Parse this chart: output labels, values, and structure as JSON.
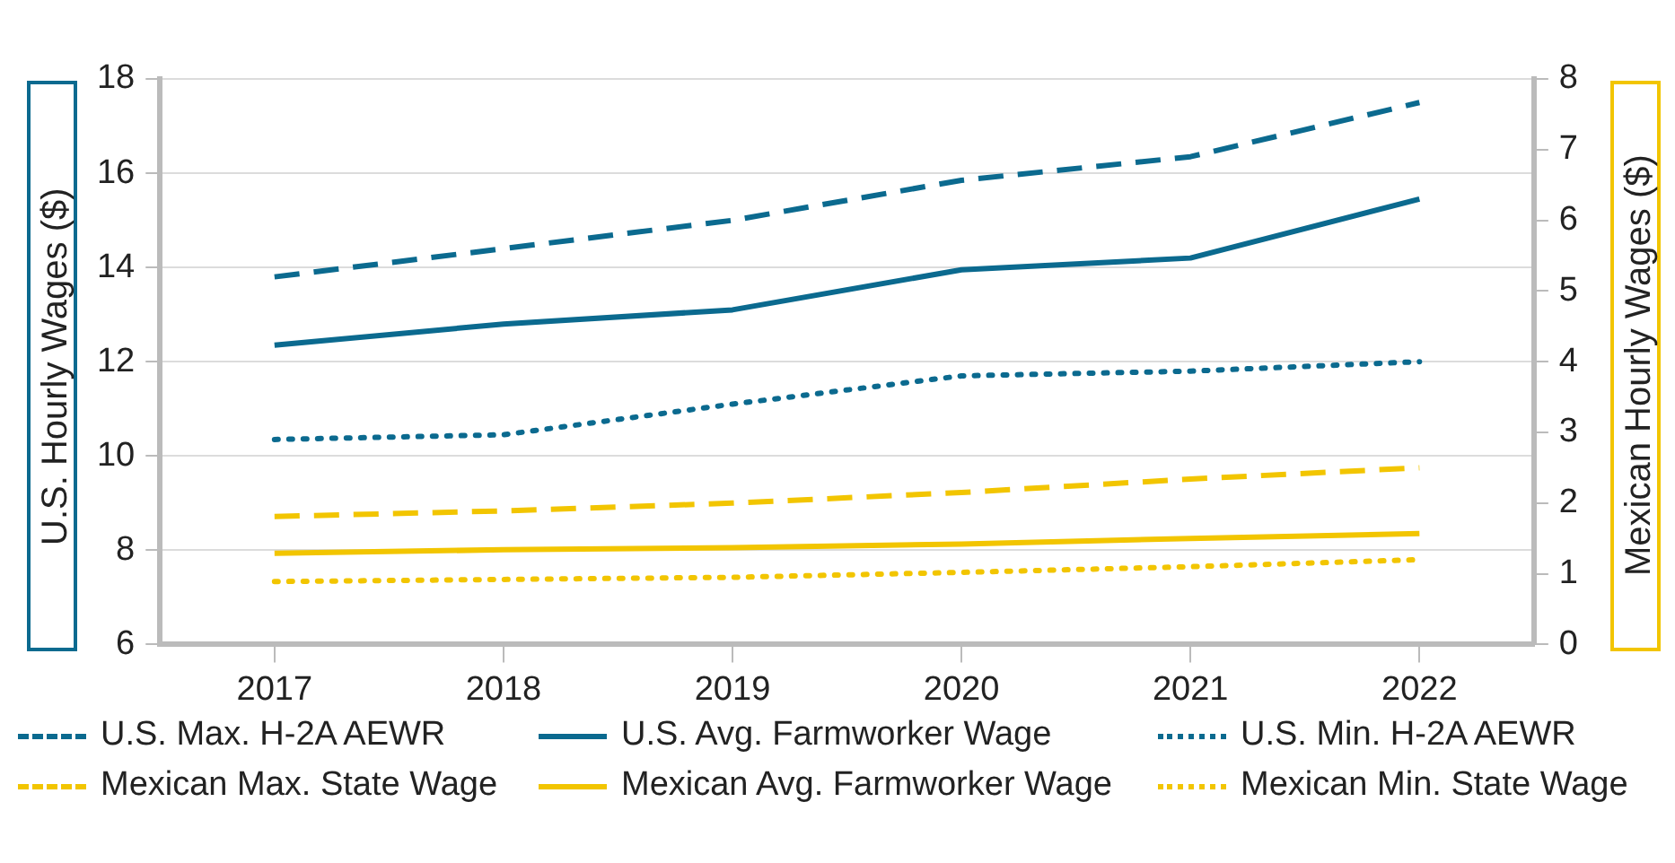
{
  "chart_data": {
    "type": "line",
    "categories": [
      "2017",
      "2018",
      "2019",
      "2020",
      "2021",
      "2022"
    ],
    "ylabel": "U.S. Hourly Wages ($)",
    "y2label": "Mexican Hourly Wages ($)",
    "ylim": [
      6,
      18
    ],
    "yticks": [
      6,
      8,
      10,
      12,
      14,
      16,
      18
    ],
    "y2lim": [
      0,
      8
    ],
    "y2ticks": [
      0,
      1,
      2,
      3,
      4,
      5,
      6,
      7,
      8
    ],
    "grid": "y",
    "legend": "bottom",
    "marker": "none",
    "series": [
      {
        "name": "U.S. Max. H-2A AEWR",
        "color": "#0b6a8f",
        "line_style": "dashed",
        "values": [
          13.8,
          14.4,
          15.0,
          15.85,
          16.35,
          17.5
        ]
      },
      {
        "name": "U.S. Avg. Farmworker Wage",
        "color": "#0b6a8f",
        "line_style": "solid",
        "values": [
          12.35,
          12.8,
          13.1,
          13.95,
          14.2,
          15.45
        ]
      },
      {
        "name": "U.S. Min. H-2A AEWR",
        "color": "#0b6a8f",
        "line_style": "dotted",
        "values": [
          10.35,
          10.45,
          11.1,
          11.7,
          11.8,
          12.0
        ]
      },
      {
        "name": "Mexican Max. State Wage",
        "color": "#f2c500",
        "line_style": "dashed",
        "axis": "y2",
        "values": [
          1.81,
          1.89,
          2.0,
          2.15,
          2.34,
          2.5
        ]
      },
      {
        "name": "Mexican Avg. Farmworker Wage",
        "color": "#f2c500",
        "line_style": "solid",
        "axis": "y2",
        "values": [
          1.29,
          1.34,
          1.37,
          1.42,
          1.5,
          1.57
        ]
      },
      {
        "name": "Mexican Min. State Wage",
        "color": "#f2c500",
        "line_style": "dotted",
        "axis": "y2",
        "values": [
          0.89,
          0.92,
          0.95,
          1.02,
          1.1,
          1.2
        ]
      }
    ]
  }
}
